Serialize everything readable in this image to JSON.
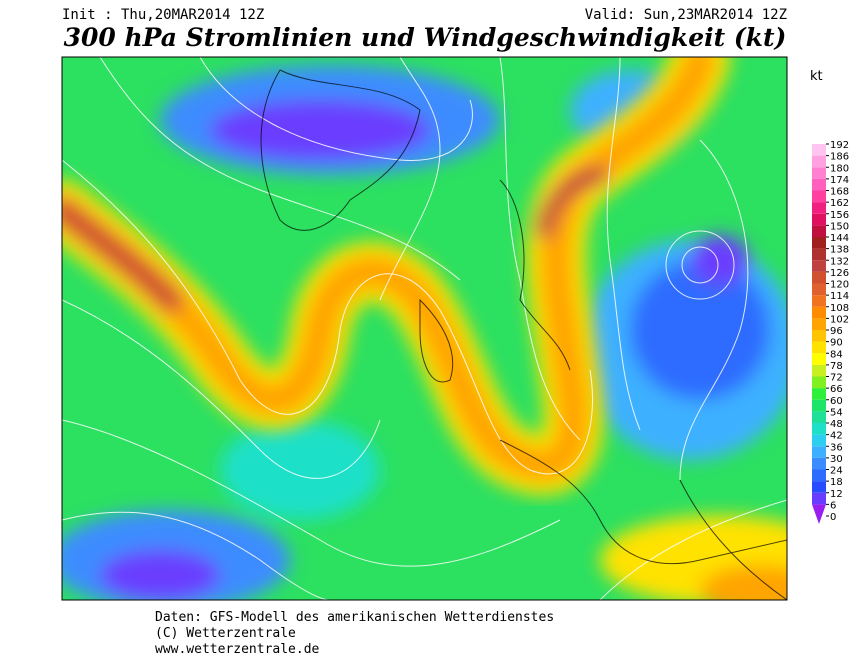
{
  "header": {
    "init": "Init : Thu,20MAR2014 12Z",
    "valid": "Valid: Sun,23MAR2014 12Z",
    "title": "300 hPa Stromlinien und Windgeschwindigkeit (kt)"
  },
  "legend": {
    "unit": "kt",
    "levels": [
      0,
      6,
      12,
      18,
      24,
      30,
      36,
      42,
      48,
      54,
      60,
      66,
      72,
      78,
      84,
      90,
      96,
      102,
      108,
      114,
      120,
      126,
      132,
      138,
      144,
      150,
      156,
      162,
      168,
      174,
      180,
      186,
      192
    ],
    "colors": [
      "#9a1ef0",
      "#6a3cff",
      "#2a4cff",
      "#2e6cff",
      "#3c8cff",
      "#3cb0ff",
      "#2ccff0",
      "#1ee0c8",
      "#1ee098",
      "#1ee46a",
      "#2cf03a",
      "#80f020",
      "#c8f020",
      "#ffff00",
      "#ffe200",
      "#ffc400",
      "#ffa400",
      "#ff8c00",
      "#f07420",
      "#e06030",
      "#d05030",
      "#c04040",
      "#b03030",
      "#a02020",
      "#c01040",
      "#e01060",
      "#f02080",
      "#ff40a0",
      "#ff60c0",
      "#ff80d0",
      "#ffa0e0",
      "#ffc4f0"
    ]
  },
  "footer": {
    "line1": "Daten: GFS-Modell des amerikanischen Wetterdienstes",
    "line2": "(C) Wetterzentrale",
    "line3": "www.wetterzentrale.de"
  }
}
